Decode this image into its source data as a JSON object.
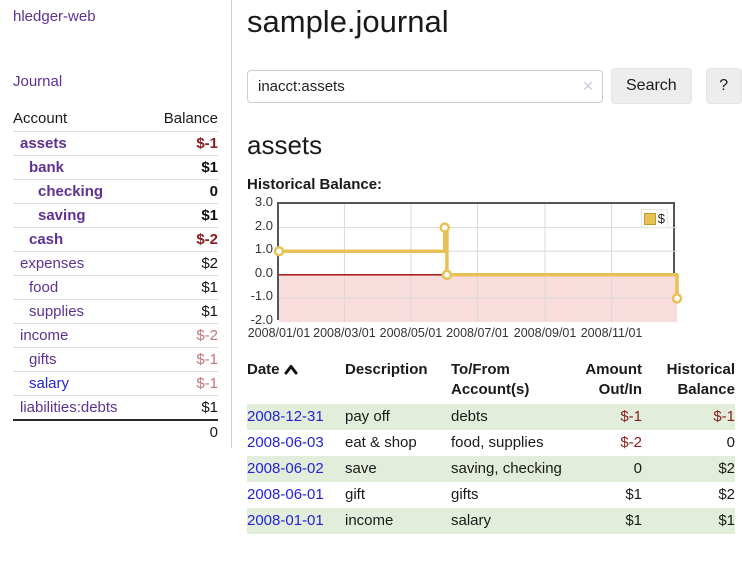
{
  "sidebar": {
    "brand": "hledger-web",
    "nav_journal": "Journal",
    "accounts_header": {
      "account": "Account",
      "balance": "Balance"
    },
    "accounts": [
      {
        "name": "assets",
        "depth": 1,
        "bold": true,
        "balance": "$-1",
        "tone": "neg",
        "link": "purple"
      },
      {
        "name": "bank",
        "depth": 2,
        "bold": true,
        "balance": "$1",
        "tone": "plain",
        "link": "purple"
      },
      {
        "name": "checking",
        "depth": 3,
        "bold": true,
        "balance": "0",
        "tone": "plain",
        "link": "purple"
      },
      {
        "name": "saving",
        "depth": 3,
        "bold": true,
        "balance": "$1",
        "tone": "plain",
        "link": "purple"
      },
      {
        "name": "cash",
        "depth": 2,
        "bold": true,
        "balance": "$-2",
        "tone": "neg",
        "link": "purple"
      },
      {
        "name": "expenses",
        "depth": 1,
        "bold": false,
        "balance": "$2",
        "tone": "plain",
        "link": "purple"
      },
      {
        "name": "food",
        "depth": 2,
        "bold": false,
        "balance": "$1",
        "tone": "plain",
        "link": "purple"
      },
      {
        "name": "supplies",
        "depth": 2,
        "bold": false,
        "balance": "$1",
        "tone": "plain",
        "link": "purple"
      },
      {
        "name": "income",
        "depth": 1,
        "bold": false,
        "balance": "$-2",
        "tone": "neg-light",
        "link": "purple"
      },
      {
        "name": "gifts",
        "depth": 2,
        "bold": false,
        "balance": "$-1",
        "tone": "neg-light",
        "link": "purple"
      },
      {
        "name": "salary",
        "depth": 2,
        "bold": false,
        "balance": "$-1",
        "tone": "neg-light",
        "link": "blue"
      },
      {
        "name": "liabilities:debts",
        "depth": 1,
        "bold": false,
        "balance": "$1",
        "tone": "plain",
        "link": "purple"
      }
    ],
    "total": "0"
  },
  "main": {
    "title": "sample.journal",
    "search": {
      "value": "inacct:assets",
      "clear_icon": "✕",
      "button_label": "Search",
      "help_label": "?"
    },
    "account_heading": "assets",
    "chart_label": "Historical Balance:",
    "register": {
      "headers": {
        "date": "Date",
        "description": "Description",
        "account": "To/From Account(s)",
        "amount": "Amount Out/In",
        "balance": "Historical Balance"
      },
      "rows": [
        {
          "date": "2008-12-31",
          "description": "pay off",
          "accounts": "debts",
          "amount": "$-1",
          "balance": "$-1",
          "striped": true
        },
        {
          "date": "2008-06-03",
          "description": "eat & shop",
          "accounts": "food, supplies",
          "amount": "$-2",
          "balance": "0",
          "striped": false
        },
        {
          "date": "2008-06-02",
          "description": "save",
          "accounts": "saving, checking",
          "amount": "0",
          "balance": "$2",
          "striped": true
        },
        {
          "date": "2008-06-01",
          "description": "gift",
          "accounts": "gifts",
          "amount": "$1",
          "balance": "$2",
          "striped": false
        },
        {
          "date": "2008-01-01",
          "description": "income",
          "accounts": "salary",
          "amount": "$1",
          "balance": "$1",
          "striped": true
        }
      ]
    }
  },
  "chart_data": {
    "type": "line",
    "step": true,
    "title": "Historical Balance:",
    "series": [
      {
        "name": "$",
        "color": "#e7c155",
        "points": [
          [
            "2008-01-01",
            1.0
          ],
          [
            "2008-06-01",
            2.0
          ],
          [
            "2008-06-03",
            0.0
          ],
          [
            "2008-12-31",
            -1.0
          ]
        ]
      }
    ],
    "x_range": [
      "2008-01-01",
      "2008-12-31"
    ],
    "x_ticks": [
      {
        "date": "2008-01-01",
        "label": "2008/01/01"
      },
      {
        "date": "2008-03-01",
        "label": "2008/03/01"
      },
      {
        "date": "2008-05-01",
        "label": "2008/05/01"
      },
      {
        "date": "2008-07-01",
        "label": "2008/07/01"
      },
      {
        "date": "2008-09-01",
        "label": "2008/09/01"
      },
      {
        "date": "2008-11-01",
        "label": "2008/11/01"
      }
    ],
    "ylim": [
      -2.0,
      3.0
    ],
    "yticks": [
      3.0,
      2.0,
      1.0,
      0.0,
      -1.0,
      -2.0
    ],
    "legend": {
      "label": "$",
      "position": "top-right"
    },
    "grid": true,
    "negative_region_fill": "#f9dcdc",
    "zero_line_color": "#990000"
  },
  "colors": {
    "accent_purple": "#5f3196",
    "link_blue": "#2323d6",
    "negative_red": "#8e1b1b",
    "negative_light_red": "#c17878",
    "stripe_green": "#e2eedb",
    "chart_gold": "#e7c155",
    "chart_negative_pink": "#f9dcdc",
    "chart_zero_line": "#990000"
  }
}
